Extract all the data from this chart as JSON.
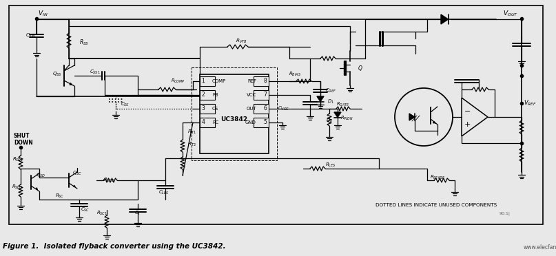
{
  "caption": "Figure 1.  Isolated flyback converter using the UC3842.",
  "watermark": "www.elecfans.com",
  "dotted_note": "DOTTED LINES INDICATE UNUSED COMPONENTS",
  "bg_color": "#f0f0f0",
  "border_color": "#000000",
  "fig_width": 8.07,
  "fig_height": 3.72,
  "dpi": 100
}
